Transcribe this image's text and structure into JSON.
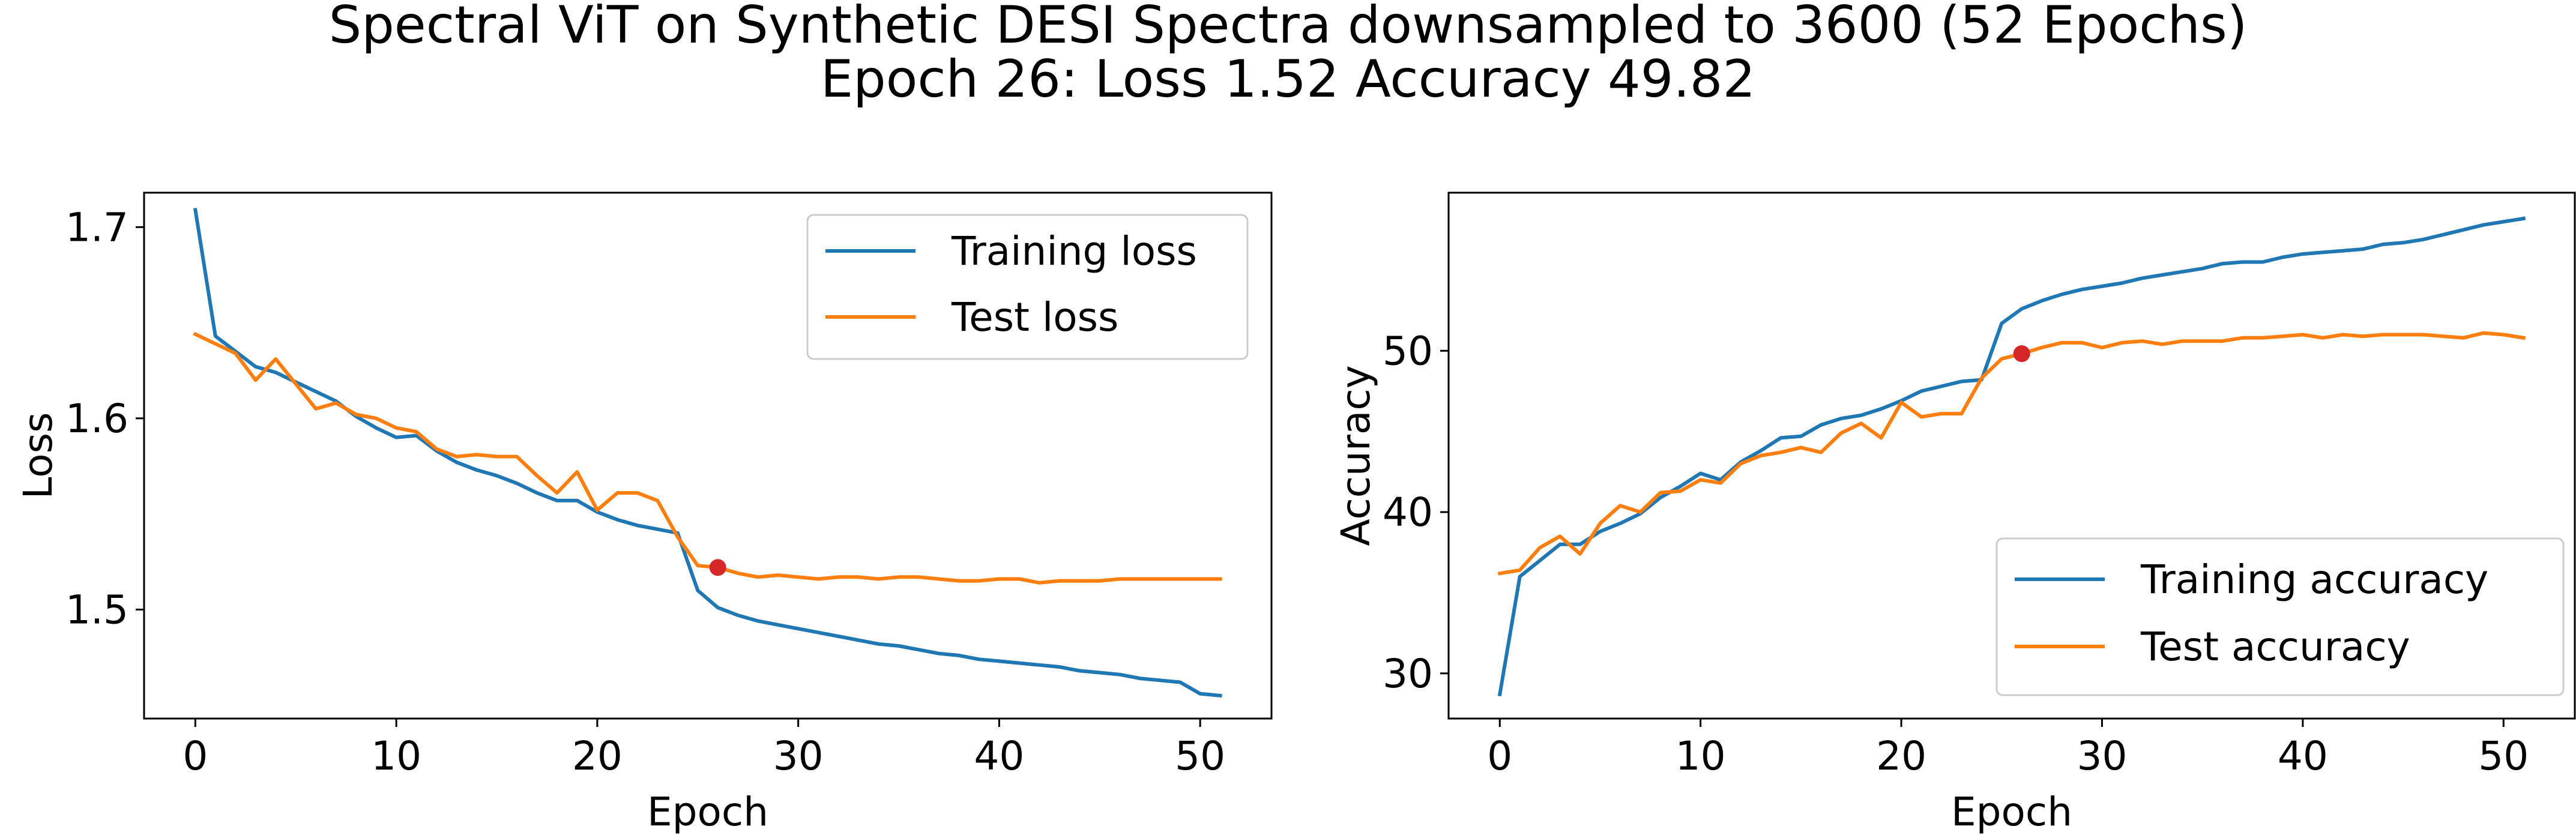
{
  "figure": {
    "title_line1": "Spectral ViT on Synthetic DESI Spectra downsampled to 3600 (52 Epochs)",
    "title_line2": "Epoch 26: Loss 1.52 Accuracy 49.82"
  },
  "colors": {
    "training": "#1f77b4",
    "test": "#ff7f0e",
    "marker": "#d62728"
  },
  "chart_data": [
    {
      "type": "line",
      "title": "",
      "xlabel": "Epoch",
      "ylabel": "Loss",
      "xlim": [
        -2.55,
        53.55
      ],
      "ylim": [
        1.443,
        1.718
      ],
      "xticks": [
        0,
        10,
        20,
        30,
        40,
        50
      ],
      "yticks": [
        1.5,
        1.6,
        1.7
      ],
      "ytick_labels": [
        "1.5",
        "1.6",
        "1.7"
      ],
      "legend": "upper right",
      "x": [
        0,
        1,
        2,
        3,
        4,
        5,
        6,
        7,
        8,
        9,
        10,
        11,
        12,
        13,
        14,
        15,
        16,
        17,
        18,
        19,
        20,
        21,
        22,
        23,
        24,
        25,
        26,
        27,
        28,
        29,
        30,
        31,
        32,
        33,
        34,
        35,
        36,
        37,
        38,
        39,
        40,
        41,
        42,
        43,
        44,
        45,
        46,
        47,
        48,
        49,
        50,
        51
      ],
      "series": [
        {
          "name": "Training loss",
          "values": [
            1.709,
            1.643,
            1.635,
            1.627,
            1.624,
            1.619,
            1.614,
            1.609,
            1.601,
            1.595,
            1.59,
            1.591,
            1.583,
            1.577,
            1.573,
            1.57,
            1.566,
            1.561,
            1.557,
            1.557,
            1.551,
            1.547,
            1.544,
            1.542,
            1.54,
            1.51,
            1.501,
            1.497,
            1.494,
            1.492,
            1.49,
            1.488,
            1.486,
            1.484,
            1.482,
            1.481,
            1.479,
            1.477,
            1.476,
            1.474,
            1.473,
            1.472,
            1.471,
            1.47,
            1.468,
            1.467,
            1.466,
            1.464,
            1.463,
            1.462,
            1.456,
            1.455
          ]
        },
        {
          "name": "Test loss",
          "values": [
            1.644,
            1.639,
            1.634,
            1.62,
            1.631,
            1.618,
            1.605,
            1.608,
            1.602,
            1.6,
            1.595,
            1.593,
            1.584,
            1.58,
            1.581,
            1.58,
            1.58,
            1.57,
            1.561,
            1.572,
            1.552,
            1.561,
            1.561,
            1.557,
            1.538,
            1.523,
            1.522,
            1.519,
            1.517,
            1.518,
            1.517,
            1.516,
            1.517,
            1.517,
            1.516,
            1.517,
            1.517,
            1.516,
            1.515,
            1.515,
            1.516,
            1.516,
            1.514,
            1.515,
            1.515,
            1.515,
            1.516,
            1.516,
            1.516,
            1.516,
            1.516,
            1.516
          ]
        }
      ],
      "highlight": {
        "x": 26,
        "y": 1.522
      }
    },
    {
      "type": "line",
      "title": "",
      "xlabel": "Epoch",
      "ylabel": "Accuracy",
      "xlim": [
        -2.55,
        53.55
      ],
      "ylim": [
        27.2,
        59.8
      ],
      "xticks": [
        0,
        10,
        20,
        30,
        40,
        50
      ],
      "yticks": [
        30,
        40,
        50
      ],
      "ytick_labels": [
        "30",
        "40",
        "50"
      ],
      "legend": "lower right",
      "x": [
        0,
        1,
        2,
        3,
        4,
        5,
        6,
        7,
        8,
        9,
        10,
        11,
        12,
        13,
        14,
        15,
        16,
        17,
        18,
        19,
        20,
        21,
        22,
        23,
        24,
        25,
        26,
        27,
        28,
        29,
        30,
        31,
        32,
        33,
        34,
        35,
        36,
        37,
        38,
        39,
        40,
        41,
        42,
        43,
        44,
        45,
        46,
        47,
        48,
        49,
        50,
        51
      ],
      "series": [
        {
          "name": "Training accuracy",
          "values": [
            28.7,
            36.0,
            37.0,
            38.0,
            38.0,
            38.8,
            39.3,
            39.9,
            40.9,
            41.6,
            42.4,
            42.0,
            43.1,
            43.8,
            44.6,
            44.7,
            45.4,
            45.8,
            46.0,
            46.4,
            46.9,
            47.5,
            47.8,
            48.1,
            48.2,
            51.7,
            52.6,
            53.1,
            53.5,
            53.8,
            54.0,
            54.2,
            54.5,
            54.7,
            54.9,
            55.1,
            55.4,
            55.5,
            55.5,
            55.8,
            56.0,
            56.1,
            56.2,
            56.3,
            56.6,
            56.7,
            56.9,
            57.2,
            57.5,
            57.8,
            58.0,
            58.2
          ]
        },
        {
          "name": "Test accuracy",
          "values": [
            36.2,
            36.4,
            37.8,
            38.5,
            37.4,
            39.3,
            40.4,
            40.0,
            41.2,
            41.3,
            42.0,
            41.8,
            43.0,
            43.5,
            43.7,
            44.0,
            43.7,
            44.9,
            45.5,
            44.6,
            46.8,
            45.9,
            46.1,
            46.1,
            48.3,
            49.5,
            49.82,
            50.2,
            50.5,
            50.5,
            50.2,
            50.5,
            50.6,
            50.4,
            50.6,
            50.6,
            50.6,
            50.8,
            50.8,
            50.9,
            51.0,
            50.8,
            51.0,
            50.9,
            51.0,
            51.0,
            51.0,
            50.9,
            50.8,
            51.1,
            51.0,
            50.8
          ]
        }
      ],
      "highlight": {
        "x": 26,
        "y": 49.82
      }
    }
  ]
}
